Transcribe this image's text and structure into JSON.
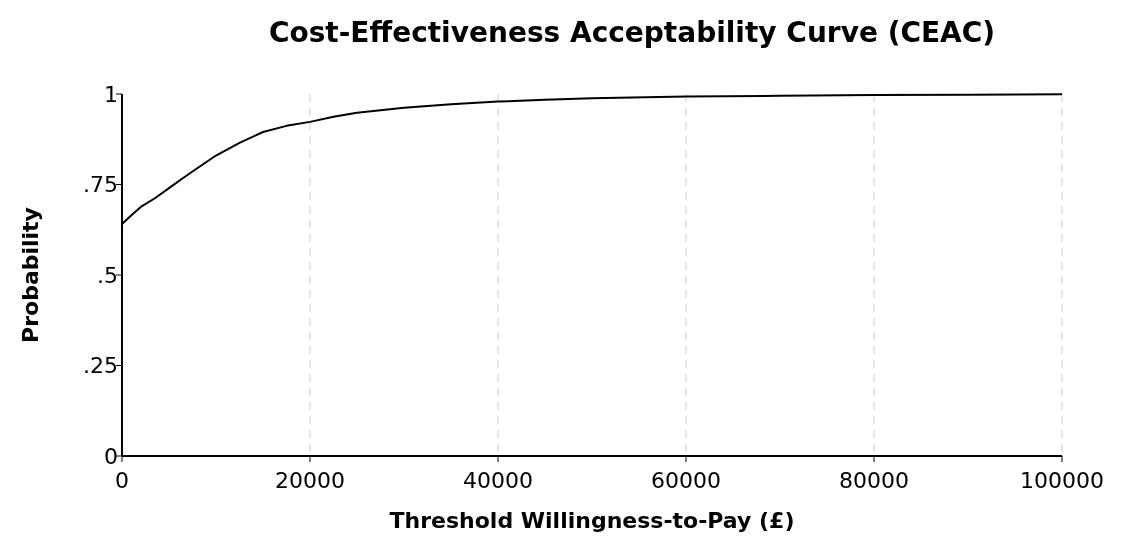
{
  "chart_data": {
    "type": "line",
    "title": "Cost-Effectiveness Acceptability Curve (CEAC)",
    "xlabel": "Threshold Willingness-to-Pay (£)",
    "ylabel": "Probability",
    "x": [
      0,
      1000,
      2000,
      3500,
      5000,
      6500,
      8000,
      10000,
      12500,
      15000,
      17500,
      20000,
      22500,
      25000,
      30000,
      35000,
      40000,
      45000,
      50000,
      60000,
      70000,
      80000,
      90000,
      100000
    ],
    "series": [
      {
        "color": "#000000",
        "values": [
          0.641,
          0.665,
          0.688,
          0.712,
          0.74,
          0.768,
          0.795,
          0.83,
          0.865,
          0.895,
          0.912,
          0.923,
          0.937,
          0.948,
          0.962,
          0.972,
          0.979,
          0.984,
          0.988,
          0.993,
          0.995,
          0.997,
          0.998,
          0.999
        ]
      }
    ],
    "xlim": [
      0,
      100000
    ],
    "xticks": [
      0,
      20000,
      40000,
      60000,
      80000,
      100000
    ],
    "ylim": [
      0,
      1
    ],
    "yticks": [
      {
        "value": 0,
        "label": "0"
      },
      {
        "value": 0.25,
        "label": ".25"
      },
      {
        "value": 0.5,
        "label": ".5"
      },
      {
        "value": 0.75,
        "label": ".75"
      },
      {
        "value": 1,
        "label": "1"
      }
    ],
    "grid": "x",
    "marker": "none",
    "line_style": "solid"
  }
}
